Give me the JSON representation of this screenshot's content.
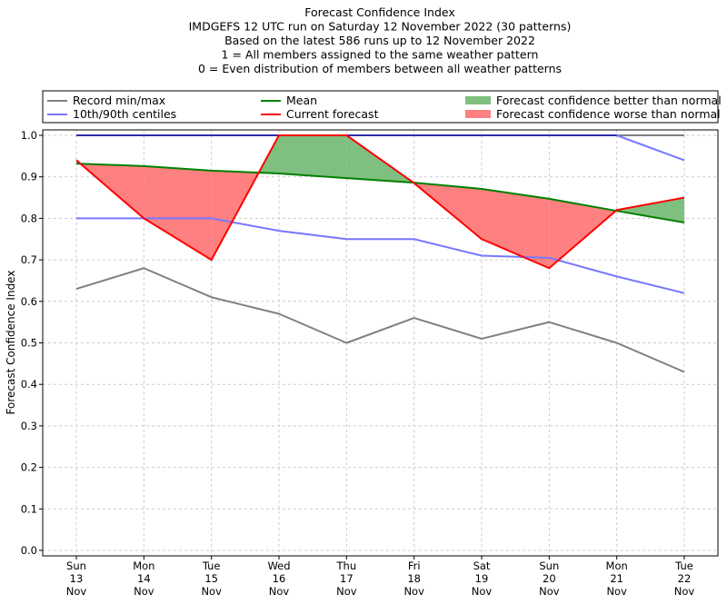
{
  "chart_data": {
    "type": "line",
    "title_lines": [
      "Forecast Confidence Index",
      "IMDGEFS 12 UTC run on Saturday 12 November 2022 (30 patterns)",
      "Based on the latest 586 runs up to 12 November 2022",
      "1 = All members assigned to the same weather pattern",
      "0 = Even distribution of members between all weather patterns"
    ],
    "ylabel": "Forecast Confidence Index",
    "xlabel": "",
    "ylim": [
      0,
      1.0
    ],
    "yticks": [
      "0.0",
      "0.1",
      "0.2",
      "0.3",
      "0.4",
      "0.5",
      "0.6",
      "0.7",
      "0.8",
      "0.9",
      "1.0"
    ],
    "grid": true,
    "legend_placement": "top, above plot",
    "categories": [
      [
        "Sun",
        "13",
        "Nov"
      ],
      [
        "Mon",
        "14",
        "Nov"
      ],
      [
        "Tue",
        "15",
        "Nov"
      ],
      [
        "Wed",
        "16",
        "Nov"
      ],
      [
        "Thu",
        "17",
        "Nov"
      ],
      [
        "Fri",
        "18",
        "Nov"
      ],
      [
        "Sat",
        "19",
        "Nov"
      ],
      [
        "Sun",
        "20",
        "Nov"
      ],
      [
        "Mon",
        "21",
        "Nov"
      ],
      [
        "Tue",
        "22",
        "Nov"
      ]
    ],
    "legend": [
      {
        "label": "Record min/max",
        "color": "#808080",
        "kind": "line"
      },
      {
        "label": "10th/90th centiles",
        "color": "#7777ff",
        "kind": "line"
      },
      {
        "label": "Mean",
        "color": "#008000",
        "kind": "line"
      },
      {
        "label": "Current forecast",
        "color": "#ff0000",
        "kind": "line"
      },
      {
        "label": "Forecast confidence better than normal",
        "color": "#7fbf7f",
        "kind": "patch"
      },
      {
        "label": "Forecast confidence worse than normal",
        "color": "#ff8080",
        "kind": "patch"
      }
    ],
    "series": {
      "record_max": [
        1.0,
        1.0,
        1.0,
        1.0,
        1.0,
        1.0,
        1.0,
        1.0,
        1.0,
        1.0
      ],
      "record_min": [
        0.63,
        0.68,
        0.61,
        0.57,
        0.5,
        0.56,
        0.51,
        0.55,
        0.5,
        0.43
      ],
      "centile_90": [
        1.0,
        1.0,
        1.0,
        1.0,
        1.0,
        1.0,
        1.0,
        1.0,
        1.0,
        0.94
      ],
      "centile_10": [
        0.8,
        0.8,
        0.8,
        0.77,
        0.75,
        0.75,
        0.71,
        0.705,
        0.66,
        0.62
      ],
      "mean": [
        0.932,
        0.926,
        0.915,
        0.908,
        0.897,
        0.886,
        0.871,
        0.847,
        0.818,
        0.79
      ],
      "current": [
        0.94,
        0.8,
        0.7,
        1.0,
        1.0,
        0.885,
        0.75,
        0.68,
        0.82,
        0.85
      ]
    }
  }
}
